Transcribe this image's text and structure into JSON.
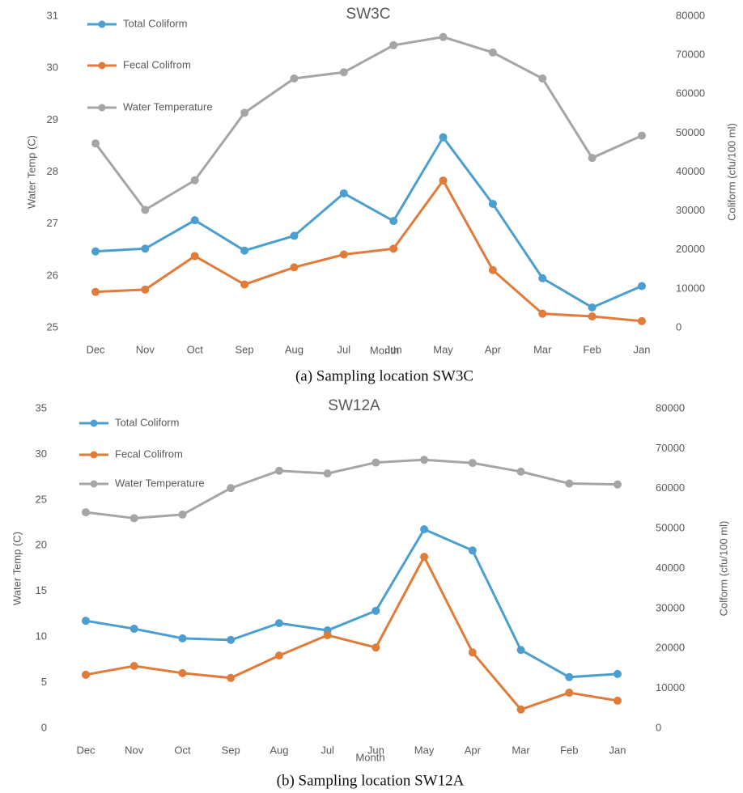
{
  "chart_data": [
    {
      "type": "line",
      "title": "SW3C",
      "caption": "(a) Sampling location SW3C",
      "x_label": "Month",
      "y_label": "Water Temp (C)",
      "y2_label": "Coliform (cfu/100 ml)",
      "categories": [
        "Dec",
        "Nov",
        "Oct",
        "Sep",
        "Aug",
        "Jul",
        "Jun",
        "May",
        "Apr",
        "Mar",
        "Feb",
        "Jan"
      ],
      "ylim": [
        25,
        31
      ],
      "yticks": [
        25,
        26,
        27,
        28,
        29,
        30,
        31
      ],
      "y2lim": [
        0,
        80000
      ],
      "y2ticks": [
        0,
        10000,
        20000,
        30000,
        40000,
        50000,
        60000,
        70000,
        80000
      ],
      "legend": "upper left",
      "series": [
        {
          "name": "Total Coliform",
          "color": "#4a9fd0",
          "axis": "y2",
          "values": [
            19600,
            20300,
            27600,
            19800,
            23600,
            34500,
            27400,
            48900,
            31800,
            12700,
            5200,
            10700
          ]
        },
        {
          "name": "Fecal Colifrom",
          "color": "#e07b39",
          "axis": "y2",
          "values": [
            9200,
            9800,
            18400,
            11100,
            15500,
            18800,
            20300,
            37800,
            14800,
            3600,
            2900,
            1700
          ]
        },
        {
          "name": "Water Temperature",
          "color": "#a5a5a5",
          "values": [
            28.55,
            27.27,
            27.84,
            29.14,
            29.8,
            29.92,
            30.44,
            30.6,
            30.3,
            29.8,
            28.27,
            28.7
          ]
        }
      ]
    },
    {
      "type": "line",
      "title": "SW12A",
      "caption": "(b) Sampling location SW12A",
      "x_label": "Month",
      "y_label": "Water Temp (C)",
      "y2_label": "Colform (cfu/100 ml)",
      "categories": [
        "Dec",
        "Nov",
        "Oct",
        "Sep",
        "Aug",
        "Jul",
        "Jun",
        "May",
        "Apr",
        "Mar",
        "Feb",
        "Jan"
      ],
      "ylim": [
        0,
        35
      ],
      "yticks": [
        0,
        5,
        10,
        15,
        20,
        25,
        30,
        35
      ],
      "y2lim": [
        0,
        80000
      ],
      "y2ticks": [
        0,
        10000,
        20000,
        30000,
        40000,
        50000,
        60000,
        70000,
        80000
      ],
      "legend": "upper left",
      "series": [
        {
          "name": "Total Coliform",
          "color": "#4a9fd0",
          "axis": "y2",
          "values": [
            26900,
            24900,
            22500,
            22100,
            26300,
            24500,
            29400,
            49800,
            44500,
            19600,
            12800,
            13600
          ]
        },
        {
          "name": "Fecal Colifrom",
          "color": "#e07b39",
          "axis": "y2",
          "values": [
            13400,
            15600,
            13800,
            12600,
            18200,
            23300,
            20200,
            42900,
            19000,
            4700,
            8900,
            6900
          ]
        },
        {
          "name": "Water Temperature",
          "color": "#a5a5a5",
          "values": [
            23.65,
            23.0,
            23.4,
            26.3,
            28.2,
            27.9,
            29.1,
            29.4,
            29.05,
            28.1,
            26.8,
            26.7
          ]
        }
      ]
    }
  ]
}
